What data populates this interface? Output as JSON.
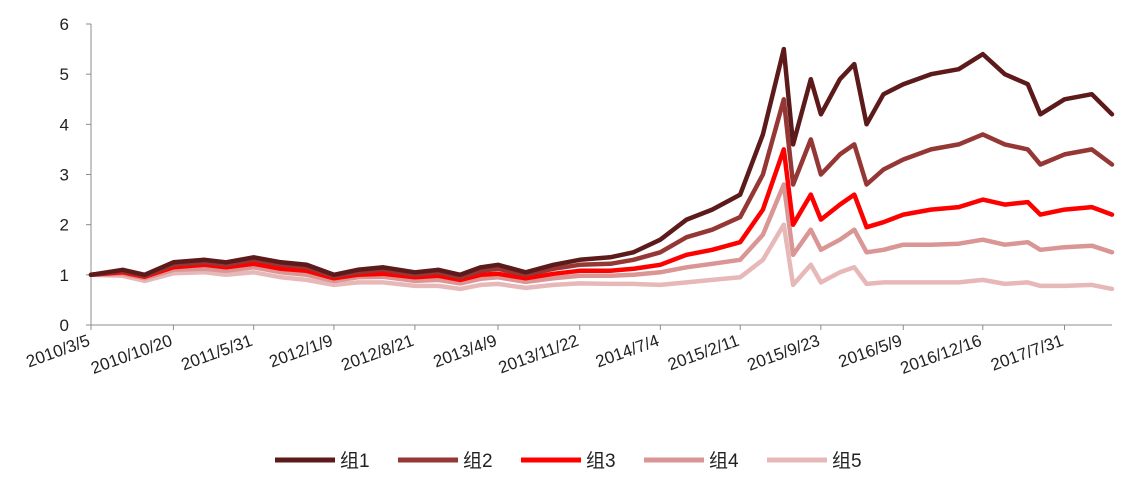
{
  "chart_data": {
    "type": "line",
    "title": "",
    "xlabel": "",
    "ylabel": "",
    "ylim": [
      0,
      6
    ],
    "yticks": [
      0,
      1,
      2,
      3,
      4,
      5,
      6
    ],
    "grid": false,
    "legend_position": "bottom",
    "x_tick_labels": [
      "2010/3/5",
      "2010/10/20",
      "2011/5/31",
      "2012/1/9",
      "2012/8/21",
      "2013/4/9",
      "2013/11/22",
      "2014/7/4",
      "2015/2/11",
      "2015/9/23",
      "2016/5/9",
      "2016/12/16",
      "2017/7/31"
    ],
    "x": [
      "2010/3/5",
      "2010/6/1",
      "2010/8/1",
      "2010/10/20",
      "2011/1/15",
      "2011/3/15",
      "2011/5/31",
      "2011/8/15",
      "2011/10/25",
      "2012/1/9",
      "2012/3/15",
      "2012/5/25",
      "2012/8/21",
      "2012/10/25",
      "2012/12/25",
      "2013/2/20",
      "2013/4/9",
      "2013/6/25",
      "2013/9/10",
      "2013/11/22",
      "2014/2/15",
      "2014/4/20",
      "2014/7/4",
      "2014/9/15",
      "2014/11/25",
      "2015/2/11",
      "2015/4/15",
      "2015/6/12",
      "2015/7/8",
      "2015/8/26",
      "2015/9/23",
      "2015/11/15",
      "2015/12/25",
      "2016/1/28",
      "2016/3/15",
      "2016/5/9",
      "2016/7/25",
      "2016/10/10",
      "2016/12/16",
      "2017/2/15",
      "2017/4/20",
      "2017/5/25",
      "2017/7/31",
      "2017/10/15",
      "2017/12/10"
    ],
    "series": [
      {
        "name": "组1",
        "color": "#5c1a1b",
        "values": [
          1.0,
          1.1,
          1.0,
          1.25,
          1.3,
          1.25,
          1.35,
          1.25,
          1.2,
          1.0,
          1.1,
          1.15,
          1.05,
          1.1,
          1.0,
          1.15,
          1.2,
          1.05,
          1.2,
          1.3,
          1.35,
          1.45,
          1.7,
          2.1,
          2.3,
          2.6,
          3.8,
          5.5,
          3.6,
          4.9,
          4.2,
          4.9,
          5.2,
          4.0,
          4.6,
          4.8,
          5.0,
          5.1,
          5.4,
          5.0,
          4.8,
          4.2,
          4.5,
          4.6,
          4.2
        ]
      },
      {
        "name": "组2",
        "color": "#953735",
        "values": [
          1.0,
          1.08,
          0.98,
          1.2,
          1.25,
          1.2,
          1.3,
          1.2,
          1.15,
          0.97,
          1.05,
          1.1,
          1.0,
          1.05,
          0.95,
          1.08,
          1.12,
          1.0,
          1.12,
          1.2,
          1.22,
          1.3,
          1.45,
          1.75,
          1.9,
          2.15,
          3.0,
          4.5,
          2.8,
          3.7,
          3.0,
          3.4,
          3.6,
          2.8,
          3.1,
          3.3,
          3.5,
          3.6,
          3.8,
          3.6,
          3.5,
          3.2,
          3.4,
          3.5,
          3.2
        ]
      },
      {
        "name": "组3",
        "color": "#ff0000",
        "values": [
          1.0,
          1.05,
          0.96,
          1.15,
          1.2,
          1.15,
          1.22,
          1.12,
          1.08,
          0.93,
          1.0,
          1.02,
          0.95,
          0.98,
          0.9,
          1.0,
          1.02,
          0.93,
          1.02,
          1.08,
          1.08,
          1.12,
          1.2,
          1.4,
          1.5,
          1.65,
          2.3,
          3.5,
          2.0,
          2.6,
          2.1,
          2.4,
          2.6,
          1.95,
          2.05,
          2.2,
          2.3,
          2.35,
          2.5,
          2.4,
          2.45,
          2.2,
          2.3,
          2.35,
          2.2
        ]
      },
      {
        "name": "组4",
        "color": "#d99694",
        "values": [
          1.0,
          1.02,
          0.93,
          1.1,
          1.12,
          1.08,
          1.15,
          1.05,
          1.0,
          0.88,
          0.95,
          0.96,
          0.88,
          0.9,
          0.83,
          0.92,
          0.95,
          0.86,
          0.93,
          0.98,
          0.98,
          1.0,
          1.05,
          1.15,
          1.22,
          1.3,
          1.8,
          2.8,
          1.4,
          1.9,
          1.5,
          1.7,
          1.9,
          1.45,
          1.5,
          1.6,
          1.6,
          1.62,
          1.7,
          1.6,
          1.65,
          1.5,
          1.55,
          1.58,
          1.45
        ]
      },
      {
        "name": "组5",
        "color": "#e6b9b8",
        "values": [
          1.0,
          0.98,
          0.88,
          1.03,
          1.05,
          1.0,
          1.05,
          0.95,
          0.9,
          0.8,
          0.85,
          0.85,
          0.78,
          0.78,
          0.72,
          0.8,
          0.82,
          0.74,
          0.8,
          0.83,
          0.82,
          0.82,
          0.8,
          0.85,
          0.9,
          0.95,
          1.3,
          2.0,
          0.8,
          1.2,
          0.85,
          1.05,
          1.15,
          0.82,
          0.85,
          0.85,
          0.85,
          0.85,
          0.9,
          0.82,
          0.85,
          0.78,
          0.78,
          0.8,
          0.72
        ]
      }
    ]
  }
}
